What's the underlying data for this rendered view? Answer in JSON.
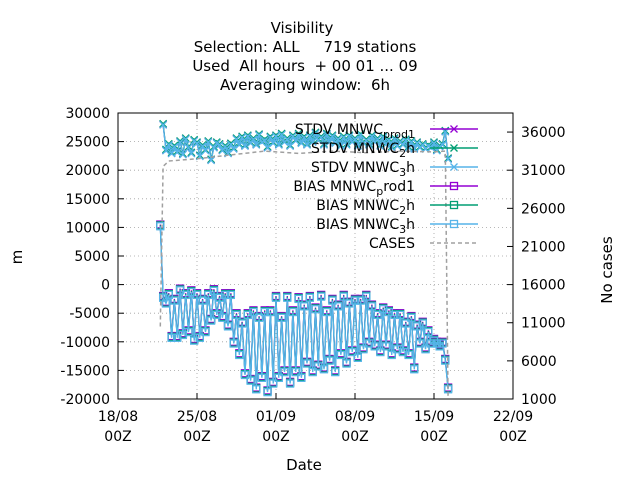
{
  "chart_data": {
    "type": "line",
    "title_lines": [
      "Visibility",
      "Selection: ALL     719 stations",
      "Used  All hours  + 00 01 ... 09",
      "Averaging window:  6h"
    ],
    "xlabel": "Date",
    "ylabel": "m",
    "y2label": "No cases",
    "xlim": [
      "2023-08-18T00",
      "2023-09-22T00"
    ],
    "ylim": [
      -20000,
      30000
    ],
    "y2lim": [
      1000,
      38500
    ],
    "x_ticks": [
      {
        "x": "2023-08-18T00",
        "line1": "18/08",
        "line2": "00Z"
      },
      {
        "x": "2023-08-25T00",
        "line1": "25/08",
        "line2": "00Z"
      },
      {
        "x": "2023-09-01T00",
        "line1": "01/09",
        "line2": "00Z"
      },
      {
        "x": "2023-09-08T00",
        "line1": "08/09",
        "line2": "00Z"
      },
      {
        "x": "2023-09-15T00",
        "line1": "15/09",
        "line2": "00Z"
      },
      {
        "x": "2023-09-22T00",
        "line1": "22/09",
        "line2": "00Z"
      }
    ],
    "y_ticks": [
      "30000",
      "25000",
      "20000",
      "15000",
      "10000",
      "5000",
      "0",
      "-5000",
      "-10000",
      "-15000",
      "-20000"
    ],
    "y2_ticks": [
      "36000",
      "31000",
      "26000",
      "21000",
      "16000",
      "11000",
      "6000",
      "1000"
    ],
    "grid": true,
    "legend_position": "top-right",
    "series": [
      {
        "name": "STDV MNWC_prod1",
        "name_main": "STDV MNWC",
        "name_sub": "prod1",
        "axis": "y",
        "color": "#9400d3",
        "marker": "x",
        "role": "stdv",
        "offset": 0
      },
      {
        "name": "STDV MNWC_2h",
        "name_main": "STDV MNWC",
        "name_sub": "2",
        "name_tail": "h",
        "axis": "y",
        "color": "#009e73",
        "marker": "x",
        "role": "stdv",
        "offset": 120
      },
      {
        "name": "STDV MNWC_3h",
        "name_main": "STDV MNWC",
        "name_sub": "3",
        "name_tail": "h",
        "axis": "y",
        "color": "#56b4e9",
        "marker": "x",
        "role": "stdv",
        "offset": -90
      },
      {
        "name": "BIAS MNWC_prod1",
        "name_main": "BIAS MNWC",
        "name_sub": "p",
        "name_tail": "rod1",
        "axis": "y",
        "color": "#9400d3",
        "marker": "square",
        "role": "bias",
        "offset": 0
      },
      {
        "name": "BIAS MNWC_2h",
        "name_main": "BIAS MNWC",
        "name_sub": "2",
        "name_tail": "h",
        "axis": "y",
        "color": "#009e73",
        "marker": "square",
        "role": "bias",
        "offset": -150
      },
      {
        "name": "BIAS MNWC_3h",
        "name_main": "BIAS MNWC",
        "name_sub": "3",
        "name_tail": "h",
        "axis": "y",
        "color": "#56b4e9",
        "marker": "square",
        "role": "bias",
        "offset": -300
      },
      {
        "name": "CASES",
        "name_main": "CASES",
        "axis": "y2",
        "color": "#a0a0a0",
        "marker": "none",
        "role": "cases",
        "offset": 0
      }
    ],
    "stdv_points": [
      {
        "x": "2023-08-22T00",
        "y": 28000
      },
      {
        "x": "2023-08-22T06",
        "y": 23500
      },
      {
        "x": "2023-08-22T12",
        "y": 24500
      },
      {
        "x": "2023-08-22T18",
        "y": 23000
      },
      {
        "x": "2023-08-23T00",
        "y": 24200
      },
      {
        "x": "2023-08-23T06",
        "y": 23200
      },
      {
        "x": "2023-08-23T12",
        "y": 25000
      },
      {
        "x": "2023-08-23T18",
        "y": 22800
      },
      {
        "x": "2023-08-24T00",
        "y": 25500
      },
      {
        "x": "2023-08-24T06",
        "y": 24000
      },
      {
        "x": "2023-08-24T12",
        "y": 23000
      },
      {
        "x": "2023-08-24T18",
        "y": 25200
      },
      {
        "x": "2023-08-25T00",
        "y": 24800
      },
      {
        "x": "2023-08-25T06",
        "y": 22500
      },
      {
        "x": "2023-08-25T12",
        "y": 24300
      },
      {
        "x": "2023-08-25T18",
        "y": 23500
      },
      {
        "x": "2023-08-26T00",
        "y": 25000
      },
      {
        "x": "2023-08-26T06",
        "y": 21800
      },
      {
        "x": "2023-08-26T12",
        "y": 24000
      },
      {
        "x": "2023-08-26T18",
        "y": 24800
      },
      {
        "x": "2023-08-27T00",
        "y": 24500
      },
      {
        "x": "2023-08-27T06",
        "y": 23500
      },
      {
        "x": "2023-08-27T12",
        "y": 24200
      },
      {
        "x": "2023-08-27T18",
        "y": 23000
      },
      {
        "x": "2023-08-28T00",
        "y": 24600
      },
      {
        "x": "2023-08-28T06",
        "y": 23800
      },
      {
        "x": "2023-08-28T12",
        "y": 25500
      },
      {
        "x": "2023-08-28T18",
        "y": 24500
      },
      {
        "x": "2023-08-29T00",
        "y": 25800
      },
      {
        "x": "2023-08-29T06",
        "y": 24300
      },
      {
        "x": "2023-08-29T12",
        "y": 26000
      },
      {
        "x": "2023-08-29T18",
        "y": 24800
      },
      {
        "x": "2023-08-30T00",
        "y": 25500
      },
      {
        "x": "2023-08-30T06",
        "y": 24500
      },
      {
        "x": "2023-08-30T12",
        "y": 26200
      },
      {
        "x": "2023-08-30T18",
        "y": 25000
      },
      {
        "x": "2023-08-31T00",
        "y": 25300
      },
      {
        "x": "2023-08-31T06",
        "y": 24000
      },
      {
        "x": "2023-08-31T12",
        "y": 25800
      },
      {
        "x": "2023-08-31T18",
        "y": 24800
      },
      {
        "x": "2023-09-01T00",
        "y": 26000
      },
      {
        "x": "2023-09-01T06",
        "y": 24500
      },
      {
        "x": "2023-09-01T12",
        "y": 26300
      },
      {
        "x": "2023-09-01T18",
        "y": 25000
      },
      {
        "x": "2023-09-02T00",
        "y": 25500
      },
      {
        "x": "2023-09-02T06",
        "y": 24300
      },
      {
        "x": "2023-09-02T12",
        "y": 26000
      },
      {
        "x": "2023-09-02T18",
        "y": 25200
      },
      {
        "x": "2023-09-03T00",
        "y": 26300
      },
      {
        "x": "2023-09-03T06",
        "y": 24800
      },
      {
        "x": "2023-09-03T12",
        "y": 25800
      },
      {
        "x": "2023-09-03T18",
        "y": 24500
      },
      {
        "x": "2023-09-04T00",
        "y": 26000
      },
      {
        "x": "2023-09-04T06",
        "y": 25000
      },
      {
        "x": "2023-09-04T12",
        "y": 26500
      },
      {
        "x": "2023-09-04T18",
        "y": 25300
      },
      {
        "x": "2023-09-05T00",
        "y": 25800
      },
      {
        "x": "2023-09-05T06",
        "y": 24500
      },
      {
        "x": "2023-09-05T12",
        "y": 26300
      },
      {
        "x": "2023-09-05T18",
        "y": 25000
      },
      {
        "x": "2023-09-06T00",
        "y": 26000
      },
      {
        "x": "2023-09-06T06",
        "y": 24800
      },
      {
        "x": "2023-09-06T12",
        "y": 25500
      },
      {
        "x": "2023-09-06T18",
        "y": 24300
      },
      {
        "x": "2023-09-07T00",
        "y": 25800
      },
      {
        "x": "2023-09-07T06",
        "y": 24500
      },
      {
        "x": "2023-09-07T12",
        "y": 26000
      },
      {
        "x": "2023-09-07T18",
        "y": 25000
      },
      {
        "x": "2023-09-08T00",
        "y": 25500
      },
      {
        "x": "2023-09-08T06",
        "y": 24300
      },
      {
        "x": "2023-09-08T12",
        "y": 26200
      },
      {
        "x": "2023-09-08T18",
        "y": 24800
      },
      {
        "x": "2023-09-09T00",
        "y": 25300
      },
      {
        "x": "2023-09-09T06",
        "y": 24500
      },
      {
        "x": "2023-09-09T12",
        "y": 26000
      },
      {
        "x": "2023-09-09T18",
        "y": 25000
      },
      {
        "x": "2023-09-10T00",
        "y": 25500
      },
      {
        "x": "2023-09-10T06",
        "y": 24300
      },
      {
        "x": "2023-09-10T12",
        "y": 25800
      },
      {
        "x": "2023-09-10T18",
        "y": 24600
      },
      {
        "x": "2023-09-11T00",
        "y": 25300
      },
      {
        "x": "2023-09-11T06",
        "y": 24000
      },
      {
        "x": "2023-09-11T12",
        "y": 25500
      },
      {
        "x": "2023-09-11T18",
        "y": 24300
      },
      {
        "x": "2023-09-12T00",
        "y": 25000
      },
      {
        "x": "2023-09-12T06",
        "y": 24500
      },
      {
        "x": "2023-09-12T12",
        "y": 25300
      },
      {
        "x": "2023-09-12T18",
        "y": 24000
      },
      {
        "x": "2023-09-13T00",
        "y": 25000
      },
      {
        "x": "2023-09-13T06",
        "y": 23800
      },
      {
        "x": "2023-09-13T12",
        "y": 24800
      },
      {
        "x": "2023-09-13T18",
        "y": 24000
      },
      {
        "x": "2023-09-14T00",
        "y": 24500
      },
      {
        "x": "2023-09-14T06",
        "y": 23800
      },
      {
        "x": "2023-09-14T12",
        "y": 24300
      },
      {
        "x": "2023-09-14T18",
        "y": 24000
      },
      {
        "x": "2023-09-15T00",
        "y": 24800
      },
      {
        "x": "2023-09-15T06",
        "y": 23500
      },
      {
        "x": "2023-09-15T12",
        "y": 24200
      },
      {
        "x": "2023-09-15T18",
        "y": 24500
      },
      {
        "x": "2023-09-16T00",
        "y": 26800
      },
      {
        "x": "2023-09-16T06",
        "y": 22000
      }
    ],
    "bias_points": [
      {
        "x": "2023-08-21T18",
        "y": 10500
      },
      {
        "x": "2023-08-22T00",
        "y": -2000
      },
      {
        "x": "2023-08-22T06",
        "y": -3000
      },
      {
        "x": "2023-08-22T12",
        "y": -1500
      },
      {
        "x": "2023-08-22T18",
        "y": -9000
      },
      {
        "x": "2023-08-23T00",
        "y": -2500
      },
      {
        "x": "2023-08-23T06",
        "y": -9000
      },
      {
        "x": "2023-08-23T12",
        "y": -700
      },
      {
        "x": "2023-08-23T18",
        "y": -8500
      },
      {
        "x": "2023-08-24T00",
        "y": -1500
      },
      {
        "x": "2023-08-24T06",
        "y": -8000
      },
      {
        "x": "2023-08-24T12",
        "y": -1000
      },
      {
        "x": "2023-08-24T18",
        "y": -9500
      },
      {
        "x": "2023-08-25T00",
        "y": -1500
      },
      {
        "x": "2023-08-25T06",
        "y": -9000
      },
      {
        "x": "2023-08-25T12",
        "y": -2500
      },
      {
        "x": "2023-08-25T18",
        "y": -8000
      },
      {
        "x": "2023-08-26T00",
        "y": -1500
      },
      {
        "x": "2023-08-26T06",
        "y": -6000
      },
      {
        "x": "2023-08-26T12",
        "y": -800
      },
      {
        "x": "2023-08-26T18",
        "y": -5000
      },
      {
        "x": "2023-08-27T00",
        "y": -2000
      },
      {
        "x": "2023-08-27T06",
        "y": -5500
      },
      {
        "x": "2023-08-27T12",
        "y": -1500
      },
      {
        "x": "2023-08-27T18",
        "y": -7000
      },
      {
        "x": "2023-08-28T00",
        "y": -1500
      },
      {
        "x": "2023-08-28T06",
        "y": -10000
      },
      {
        "x": "2023-08-28T12",
        "y": -5000
      },
      {
        "x": "2023-08-28T18",
        "y": -12000
      },
      {
        "x": "2023-08-29T00",
        "y": -6500
      },
      {
        "x": "2023-08-29T06",
        "y": -15500
      },
      {
        "x": "2023-08-29T12",
        "y": -5000
      },
      {
        "x": "2023-08-29T18",
        "y": -16500
      },
      {
        "x": "2023-08-30T00",
        "y": -4500
      },
      {
        "x": "2023-08-30T06",
        "y": -18000
      },
      {
        "x": "2023-08-30T12",
        "y": -5500
      },
      {
        "x": "2023-08-30T18",
        "y": -16000
      },
      {
        "x": "2023-08-31T00",
        "y": -4500
      },
      {
        "x": "2023-08-31T06",
        "y": -18500
      },
      {
        "x": "2023-08-31T12",
        "y": -4500
      },
      {
        "x": "2023-08-31T18",
        "y": -17000
      },
      {
        "x": "2023-09-01T00",
        "y": -2000
      },
      {
        "x": "2023-09-01T06",
        "y": -16000
      },
      {
        "x": "2023-09-01T12",
        "y": -5500
      },
      {
        "x": "2023-09-01T18",
        "y": -15000
      },
      {
        "x": "2023-09-02T00",
        "y": -2000
      },
      {
        "x": "2023-09-02T06",
        "y": -17000
      },
      {
        "x": "2023-09-02T12",
        "y": -4500
      },
      {
        "x": "2023-09-02T18",
        "y": -15000
      },
      {
        "x": "2023-09-03T00",
        "y": -2200
      },
      {
        "x": "2023-09-03T06",
        "y": -16000
      },
      {
        "x": "2023-09-03T12",
        "y": -3500
      },
      {
        "x": "2023-09-03T18",
        "y": -13500
      },
      {
        "x": "2023-09-04T00",
        "y": -2000
      },
      {
        "x": "2023-09-04T06",
        "y": -15000
      },
      {
        "x": "2023-09-04T12",
        "y": -4000
      },
      {
        "x": "2023-09-04T18",
        "y": -14000
      },
      {
        "x": "2023-09-05T00",
        "y": -1800
      },
      {
        "x": "2023-09-05T06",
        "y": -14500
      },
      {
        "x": "2023-09-05T12",
        "y": -4500
      },
      {
        "x": "2023-09-05T18",
        "y": -13000
      },
      {
        "x": "2023-09-06T00",
        "y": -2500
      },
      {
        "x": "2023-09-06T06",
        "y": -15000
      },
      {
        "x": "2023-09-06T12",
        "y": -3500
      },
      {
        "x": "2023-09-06T18",
        "y": -12000
      },
      {
        "x": "2023-09-07T00",
        "y": -1800
      },
      {
        "x": "2023-09-07T06",
        "y": -13500
      },
      {
        "x": "2023-09-07T12",
        "y": -3000
      },
      {
        "x": "2023-09-07T18",
        "y": -11500
      },
      {
        "x": "2023-09-08T00",
        "y": -2500
      },
      {
        "x": "2023-09-08T06",
        "y": -12500
      },
      {
        "x": "2023-09-08T12",
        "y": -2500
      },
      {
        "x": "2023-09-08T18",
        "y": -11000
      },
      {
        "x": "2023-09-09T00",
        "y": -1800
      },
      {
        "x": "2023-09-09T06",
        "y": -10000
      },
      {
        "x": "2023-09-09T12",
        "y": -3500
      },
      {
        "x": "2023-09-09T18",
        "y": -10500
      },
      {
        "x": "2023-09-10T00",
        "y": -5000
      },
      {
        "x": "2023-09-10T06",
        "y": -11500
      },
      {
        "x": "2023-09-10T12",
        "y": -4000
      },
      {
        "x": "2023-09-10T18",
        "y": -10500
      },
      {
        "x": "2023-09-11T00",
        "y": -4500
      },
      {
        "x": "2023-09-11T06",
        "y": -12000
      },
      {
        "x": "2023-09-11T12",
        "y": -5000
      },
      {
        "x": "2023-09-11T18",
        "y": -11000
      },
      {
        "x": "2023-09-12T00",
        "y": -5000
      },
      {
        "x": "2023-09-12T06",
        "y": -11500
      },
      {
        "x": "2023-09-12T12",
        "y": -6500
      },
      {
        "x": "2023-09-12T18",
        "y": -12000
      },
      {
        "x": "2023-09-13T00",
        "y": -5500
      },
      {
        "x": "2023-09-13T06",
        "y": -14500
      },
      {
        "x": "2023-09-13T12",
        "y": -7000
      },
      {
        "x": "2023-09-13T18",
        "y": -10000
      },
      {
        "x": "2023-09-14T00",
        "y": -6500
      },
      {
        "x": "2023-09-14T06",
        "y": -11000
      },
      {
        "x": "2023-09-14T12",
        "y": -8000
      },
      {
        "x": "2023-09-14T18",
        "y": -10000
      },
      {
        "x": "2023-09-15T00",
        "y": -9500
      },
      {
        "x": "2023-09-15T06",
        "y": -10000
      },
      {
        "x": "2023-09-15T12",
        "y": -10500
      },
      {
        "x": "2023-09-15T18",
        "y": -10000
      },
      {
        "x": "2023-09-16T00",
        "y": -13000
      },
      {
        "x": "2023-09-16T06",
        "y": -18000
      }
    ],
    "cases_points": [
      {
        "x": "2023-08-21T18",
        "y2": 10500
      },
      {
        "x": "2023-08-22T00",
        "y2": 31500
      },
      {
        "x": "2023-08-22T12",
        "y2": 32200
      },
      {
        "x": "2023-08-25T00",
        "y2": 32500
      },
      {
        "x": "2023-08-28T00",
        "y2": 33000
      },
      {
        "x": "2023-08-31T00",
        "y2": 33500
      },
      {
        "x": "2023-09-03T00",
        "y2": 33200
      },
      {
        "x": "2023-09-06T00",
        "y2": 33500
      },
      {
        "x": "2023-09-09T00",
        "y2": 33300
      },
      {
        "x": "2023-09-12T00",
        "y2": 33500
      },
      {
        "x": "2023-09-15T00",
        "y2": 33400
      },
      {
        "x": "2023-09-16T00",
        "y2": 33500
      },
      {
        "x": "2023-09-16T06",
        "y2": 1000
      }
    ]
  }
}
